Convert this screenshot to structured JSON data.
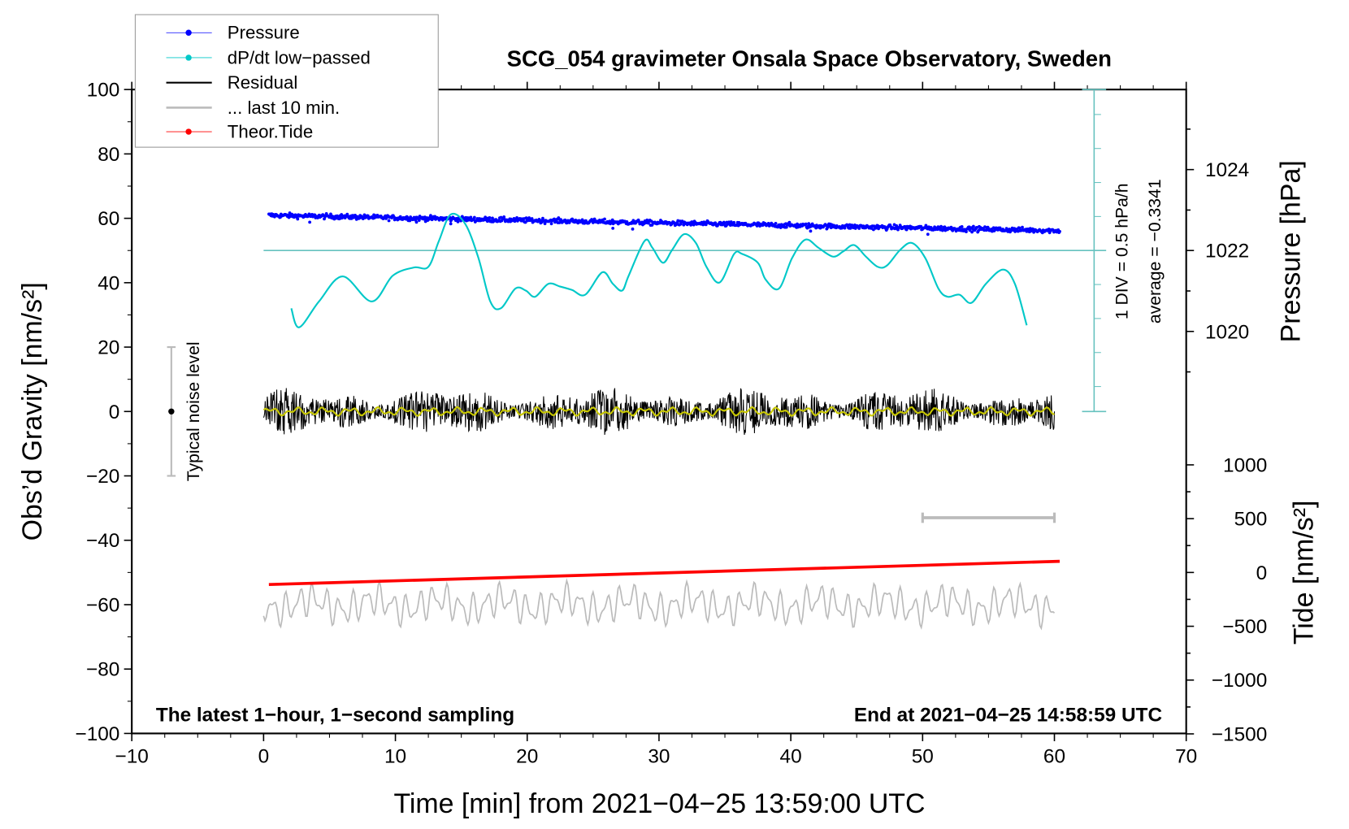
{
  "chart_data": {
    "type": "line",
    "title": "SCG_054 gravimeter Onsala Space Observatory, Sweden",
    "xlabel": "Time [min] from 2021−04−25 13:59:00 UTC",
    "ylabel": "Obs’d Gravity [nm/s²]",
    "y2label_pressure": "Pressure [hPa]",
    "y2label_tide": "Tide [nm/s²]",
    "xlim": [
      -10,
      70
    ],
    "ylim": [
      -100,
      100
    ],
    "pressure_lim": [
      1018,
      1026
    ],
    "tide_lim": [
      -1500,
      1500
    ],
    "x_ticks": [
      "−10",
      "0",
      "10",
      "20",
      "30",
      "40",
      "50",
      "60",
      "70"
    ],
    "y_ticks": [
      "−100",
      "−80",
      "−60",
      "−40",
      "−20",
      "0",
      "20",
      "40",
      "60",
      "80",
      "100"
    ],
    "pressure_ticks": [
      "1020",
      "1022",
      "1024"
    ],
    "tide_ticks": [
      "1000",
      "500",
      "0",
      "−500",
      "−1000",
      "−1500"
    ],
    "legend": {
      "placement": "top-left",
      "entries": [
        {
          "label": "Pressure",
          "color": "#0000ff"
        },
        {
          "label": "dP/dt low−passed",
          "color": "#00c8c8"
        },
        {
          "label": "Residual",
          "color": "#000000"
        },
        {
          "label": "... last 10 min.",
          "color": "#bbbbbb"
        },
        {
          "label": "Theor.Tide",
          "color": "#ff0000"
        }
      ]
    },
    "annotations": {
      "bottom_left": "The latest 1−hour, 1−second sampling",
      "bottom_right": "End at 2021−04−25 14:58:59 UTC",
      "div_scale": "1 DIV = 0.5 hPa/h",
      "average": "average = −0.3341",
      "noise_label": "Typical noise level"
    },
    "noise_level": {
      "x": -7,
      "range": [
        -20,
        20
      ]
    },
    "last10_bar": {
      "x": [
        50,
        60
      ],
      "y": -33
    },
    "pressure": {
      "unit": "hPa",
      "t": [
        0.4,
        60.4
      ],
      "start": 1022.87,
      "end": 1022.49,
      "scatter": 0.05,
      "outliers": [
        [
          3.5,
          1022.7
        ],
        [
          11.6,
          1022.7
        ],
        [
          14.2,
          1022.66
        ],
        [
          26.5,
          1022.55
        ],
        [
          28.0,
          1022.53
        ],
        [
          41.5,
          1022.48
        ],
        [
          50.4,
          1022.4
        ]
      ]
    },
    "dpdt": {
      "unit": "hPa/h",
      "zero_level_gravity": 50,
      "hPa_per_div": 0.5,
      "t": [
        2.1,
        2.7,
        4.2,
        6.0,
        8.2,
        9.8,
        11.4,
        12.5,
        13.3,
        14.2,
        15.3,
        16.3,
        17.2,
        18.0,
        19.1,
        19.9,
        20.6,
        21.6,
        22.5,
        23.4,
        24.4,
        25.7,
        26.5,
        27.2,
        27.7,
        28.9,
        29.5,
        30.3,
        31.0,
        31.9,
        32.8,
        33.6,
        34.6,
        35.7,
        36.3,
        37.5,
        38.1,
        39.1,
        40.1,
        41.1,
        42.1,
        43.2,
        44.0,
        44.8,
        45.7,
        46.6,
        47.3,
        48.3,
        49.2,
        50.2,
        51.2,
        51.9,
        52.8,
        53.7,
        54.8,
        56.1,
        57.0,
        57.9
      ],
      "v": [
        -0.85,
        -1.13,
        -0.75,
        -0.38,
        -0.75,
        -0.37,
        -0.25,
        -0.24,
        0.14,
        0.53,
        0.39,
        -0.11,
        -0.75,
        -0.85,
        -0.56,
        -0.59,
        -0.68,
        -0.49,
        -0.53,
        -0.58,
        -0.65,
        -0.32,
        -0.49,
        -0.59,
        -0.37,
        0.14,
        0.04,
        -0.18,
        0.01,
        0.24,
        0.11,
        -0.24,
        -0.47,
        -0.05,
        -0.05,
        -0.18,
        -0.43,
        -0.56,
        -0.11,
        0.16,
        0.04,
        -0.09,
        -0.01,
        0.08,
        -0.09,
        -0.24,
        -0.22,
        0.01,
        0.11,
        -0.11,
        -0.56,
        -0.68,
        -0.65,
        -0.77,
        -0.49,
        -0.28,
        -0.49,
        -1.1
      ]
    },
    "residual": {
      "unit": "nm/s²",
      "t": [
        0,
        60
      ],
      "center": 0,
      "amplitude": 6,
      "smoothed_color": "#c8c800"
    },
    "last10min": {
      "unit": "nm/s²",
      "t": [
        0,
        60
      ],
      "offset": -60,
      "amplitude": 6
    },
    "tide": {
      "unit": "nm/s²",
      "t": [
        0.4,
        60.4
      ],
      "values": [
        -112,
        104
      ]
    }
  }
}
